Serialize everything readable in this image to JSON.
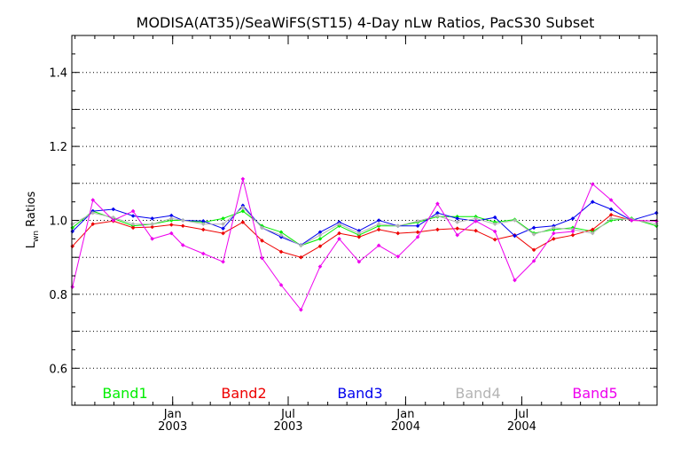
{
  "chart_data": {
    "type": "line",
    "title": "MODISA(AT35)/SeaWiFS(ST15) 4-Day nLw Ratios, PacS30 Subset",
    "ylabel_main": "L",
    "ylabel_sub": "wn",
    "ylabel_rest": " Ratios",
    "xlabel": "",
    "ylim": [
      0.5,
      1.5
    ],
    "xlim": [
      "2002-07-27",
      "2005-01-29"
    ],
    "y_ticks": [
      {
        "value": 0.6,
        "label": "0.6"
      },
      {
        "value": 0.8,
        "label": "0.8"
      },
      {
        "value": 1.0,
        "label": "1.0"
      },
      {
        "value": 1.2,
        "label": "1.2"
      },
      {
        "value": 1.4,
        "label": "1.4"
      }
    ],
    "x_ticks": [
      {
        "date": "2003-01-01",
        "label1": "Jan",
        "label2": "2003"
      },
      {
        "date": "2003-07-01",
        "label1": "Jul",
        "label2": "2003"
      },
      {
        "date": "2004-01-01",
        "label1": "Jan",
        "label2": "2004"
      },
      {
        "date": "2004-07-01",
        "label1": "Jul",
        "label2": "2004"
      }
    ],
    "grid": "horizontal-dotted",
    "x": [
      "2002-07-28",
      "2002-08-29",
      "2002-09-30",
      "2002-10-31",
      "2002-11-30",
      "2002-12-30",
      "2003-01-17",
      "2003-02-18",
      "2003-03-21",
      "2003-04-21",
      "2003-05-21",
      "2003-06-20",
      "2003-07-21",
      "2003-08-20",
      "2003-09-19",
      "2003-10-20",
      "2003-11-20",
      "2003-12-20",
      "2004-01-20",
      "2004-02-20",
      "2004-03-22",
      "2004-04-20",
      "2004-05-20",
      "2004-06-20",
      "2004-07-20",
      "2004-08-20",
      "2004-09-19",
      "2004-10-20",
      "2004-11-18",
      "2004-12-20",
      "2005-01-28"
    ],
    "series": [
      {
        "name": "Band1",
        "color": "#00ee00",
        "values": [
          0.98,
          1.025,
          1.005,
          0.985,
          0.99,
          1.0,
          1.0,
          0.995,
          1.005,
          1.025,
          0.985,
          0.968,
          0.932,
          0.95,
          0.985,
          0.96,
          0.985,
          0.985,
          0.995,
          1.01,
          1.01,
          1.01,
          0.995,
          1.002,
          0.965,
          0.975,
          0.98,
          0.97,
          1.0,
          1.005,
          0.985
        ]
      },
      {
        "name": "Band2",
        "color": "#ee0000",
        "values": [
          0.93,
          0.99,
          0.998,
          0.98,
          0.982,
          0.988,
          0.985,
          0.975,
          0.965,
          0.995,
          0.945,
          0.915,
          0.9,
          0.93,
          0.965,
          0.955,
          0.975,
          0.965,
          0.968,
          0.975,
          0.978,
          0.972,
          0.948,
          0.96,
          0.92,
          0.95,
          0.96,
          0.975,
          1.015,
          1.0,
          0.998
        ]
      },
      {
        "name": "Band3",
        "color": "#0000ee",
        "values": [
          0.97,
          1.025,
          1.03,
          1.012,
          1.005,
          1.013,
          1.0,
          0.998,
          0.978,
          1.04,
          0.98,
          0.955,
          0.933,
          0.968,
          0.995,
          0.972,
          1.0,
          0.985,
          0.985,
          1.02,
          1.005,
          0.998,
          1.008,
          0.958,
          0.98,
          0.985,
          1.005,
          1.05,
          1.03,
          1.0,
          1.02
        ]
      },
      {
        "name": "Band4",
        "color": "#b4b4b4",
        "values": [
          0.99,
          1.02,
          1.008,
          0.99,
          0.99,
          1.005,
          1.0,
          0.99,
          0.99,
          1.035,
          0.98,
          0.96,
          0.932,
          0.96,
          0.99,
          0.965,
          0.99,
          0.985,
          0.998,
          1.012,
          0.995,
          1.005,
          0.99,
          1.0,
          0.962,
          0.98,
          0.975,
          0.965,
          1.005,
          1.003,
          0.99
        ]
      },
      {
        "name": "Band5",
        "color": "#ee00ee",
        "values": [
          0.82,
          1.055,
          1.0,
          1.025,
          0.95,
          0.965,
          0.933,
          0.91,
          0.888,
          1.112,
          0.898,
          0.825,
          0.758,
          0.875,
          0.95,
          0.888,
          0.932,
          0.902,
          0.955,
          1.045,
          0.96,
          0.998,
          0.97,
          0.838,
          0.89,
          0.965,
          0.97,
          1.098,
          1.055,
          1.0,
          0.998
        ]
      }
    ]
  }
}
